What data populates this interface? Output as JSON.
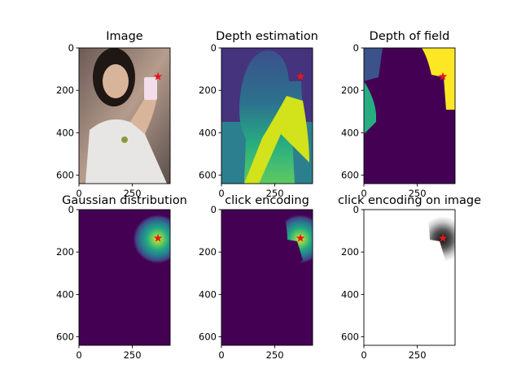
{
  "colors": {
    "viridis_low": "#440154",
    "viridis_mid": "#21918c",
    "viridis_high": "#fde725",
    "marker": "#e8141e",
    "image_bg": "#c0b8b2"
  },
  "chart_data": [
    {
      "type": "image",
      "title": "Image",
      "xlim": [
        0,
        427
      ],
      "ylim": [
        640,
        0
      ],
      "xticks": [
        0,
        250
      ],
      "yticks": [
        0,
        200,
        400,
        600
      ],
      "xticklabels": [
        "0",
        "250"
      ],
      "yticklabels": [
        "0",
        "200",
        "400",
        "600"
      ],
      "marker": {
        "x": 370,
        "y": 135,
        "shape": "star"
      },
      "content": "photo of a woman holding a phone"
    },
    {
      "type": "heatmap",
      "title": "Depth estimation",
      "colormap": "viridis",
      "xlim": [
        0,
        427
      ],
      "ylim": [
        640,
        0
      ],
      "xticks": [
        0,
        250
      ],
      "yticks": [
        0,
        200,
        400,
        600
      ],
      "xticklabels": [
        "0",
        "250"
      ],
      "yticklabels": [
        "0",
        "200",
        "400",
        "600"
      ],
      "marker": {
        "x": 370,
        "y": 135,
        "shape": "star"
      }
    },
    {
      "type": "heatmap",
      "title": "Depth of field",
      "colormap": "viridis",
      "xlim": [
        0,
        427
      ],
      "ylim": [
        640,
        0
      ],
      "xticks": [
        0,
        250
      ],
      "yticks": [
        0,
        200,
        400,
        600
      ],
      "xticklabels": [
        "0",
        "250"
      ],
      "yticklabels": [
        "0",
        "200",
        "400",
        "600"
      ],
      "marker": {
        "x": 370,
        "y": 135,
        "shape": "star"
      }
    },
    {
      "type": "heatmap",
      "title": "Gaussian distribution",
      "colormap": "viridis",
      "center": {
        "x": 370,
        "y": 135
      },
      "xlim": [
        0,
        427
      ],
      "ylim": [
        640,
        0
      ],
      "xticks": [
        0,
        250
      ],
      "yticks": [
        0,
        200,
        400,
        600
      ],
      "xticklabels": [
        "0",
        "250"
      ],
      "yticklabels": [
        "0",
        "200",
        "400",
        "600"
      ],
      "marker": {
        "x": 370,
        "y": 135,
        "shape": "star"
      }
    },
    {
      "type": "heatmap",
      "title": "click encoding",
      "colormap": "viridis",
      "xlim": [
        0,
        427
      ],
      "ylim": [
        640,
        0
      ],
      "xticks": [
        0,
        250
      ],
      "yticks": [
        0,
        200,
        400,
        600
      ],
      "xticklabels": [
        "0",
        "250"
      ],
      "yticklabels": [
        "0",
        "200",
        "400",
        "600"
      ],
      "marker": {
        "x": 370,
        "y": 135,
        "shape": "star"
      }
    },
    {
      "type": "heatmap",
      "title": "click encoding on image",
      "colormap": "greys",
      "xlim": [
        0,
        427
      ],
      "ylim": [
        640,
        0
      ],
      "xticks": [
        0,
        250
      ],
      "yticks": [
        0,
        200,
        400,
        600
      ],
      "xticklabels": [
        "0",
        "250"
      ],
      "yticklabels": [
        "0",
        "200",
        "400",
        "600"
      ],
      "marker": {
        "x": 370,
        "y": 135,
        "shape": "star"
      }
    }
  ]
}
